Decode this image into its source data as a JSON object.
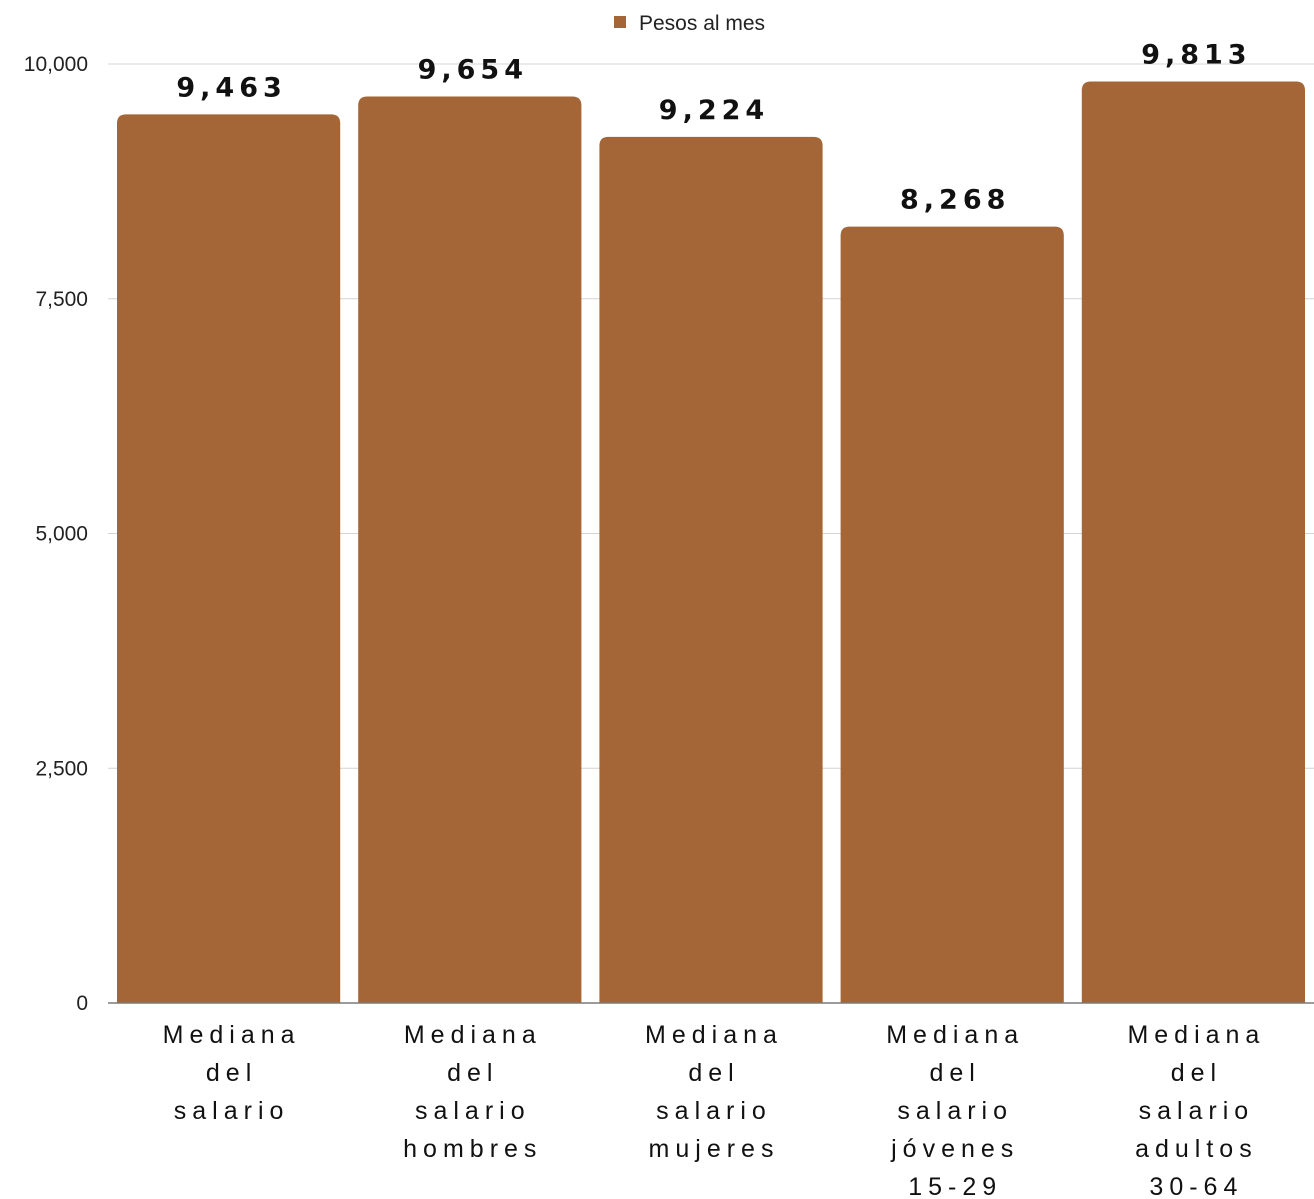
{
  "chart_data": {
    "type": "bar",
    "categories": [
      [
        "Mediana",
        "del",
        "salario"
      ],
      [
        "Mediana",
        "del",
        "salario",
        "hombres"
      ],
      [
        "Mediana",
        "del",
        "salario",
        "mujeres"
      ],
      [
        "Mediana",
        "del",
        "salario",
        "jóvenes",
        "15-29"
      ],
      [
        "Mediana",
        "del",
        "salario",
        "adultos",
        "30-64"
      ]
    ],
    "series": [
      {
        "name": "Pesos al mes",
        "color": "#A46636",
        "values": [
          9463,
          9654,
          9224,
          8268,
          9813
        ],
        "labels": [
          "9,463",
          "9,654",
          "9,224",
          "8,268",
          "9,813"
        ]
      }
    ],
    "title": "",
    "xlabel": "",
    "ylabel": "",
    "ylim": [
      0,
      10000
    ],
    "yticks": [
      0,
      2500,
      5000,
      7500,
      10000
    ],
    "ytick_labels": [
      "0",
      "2,500",
      "5,000",
      "7,500",
      "10,000"
    ],
    "grid": true,
    "legend": "top-center"
  }
}
